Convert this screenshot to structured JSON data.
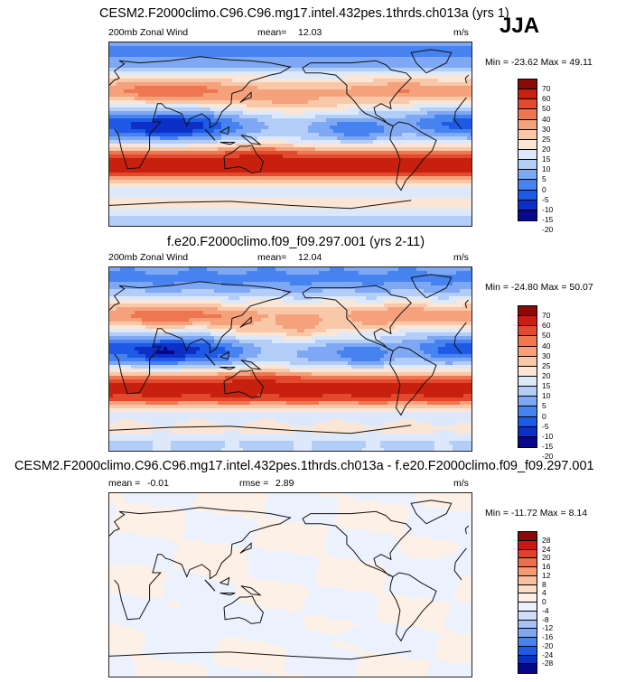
{
  "season": "JJA",
  "colors": {
    "wind": [
      "#08088c",
      "#0c2fc8",
      "#1e5ae6",
      "#4682f0",
      "#7ea8f4",
      "#b2cdf7",
      "#dde9fb",
      "#fbe6d6",
      "#f9c8a8",
      "#f5a27c",
      "#ee7650",
      "#e34a2d",
      "#c8200f",
      "#8c0a05"
    ],
    "diff": [
      "#08088c",
      "#0c2fc8",
      "#1e5ae6",
      "#4682f0",
      "#7ea8f4",
      "#a6c2f6",
      "#cfdff9",
      "#ecf2fd",
      "#fdf0e6",
      "#fbdcc4",
      "#f8c0a0",
      "#f49a76",
      "#ec6e4a",
      "#e0432a",
      "#c41c0e",
      "#8c0a05"
    ]
  },
  "chart_data": [
    {
      "type": "heatmap",
      "title": "CESM2.F2000climo.C96.C96.mg17.intel.432pes.1thrds.ch013a (yrs 1)",
      "variable": "200mb Zonal Wind",
      "mean_label": "mean=",
      "mean": "12.03",
      "units": "m/s",
      "minmax": "Min = -23.62 Max =  49.11",
      "colorbar_ticks": [
        "70",
        "60",
        "50",
        "40",
        "30",
        "25",
        "20",
        "15",
        "10",
        "5",
        "0",
        "-5",
        "-10",
        "-15",
        "-20"
      ],
      "lon_range": [
        0,
        360
      ],
      "lat_range": [
        -90,
        90
      ]
    },
    {
      "type": "heatmap",
      "title": "f.e20.F2000climo.f09_f09.297.001 (yrs 2-11)",
      "variable": "200mb Zonal Wind",
      "mean_label": "mean=",
      "mean": "12.04",
      "units": "m/s",
      "minmax": "Min = -24.80 Max =  50.07",
      "colorbar_ticks": [
        "70",
        "60",
        "50",
        "40",
        "30",
        "25",
        "20",
        "15",
        "10",
        "5",
        "0",
        "-5",
        "-10",
        "-15",
        "-20"
      ],
      "lon_range": [
        0,
        360
      ],
      "lat_range": [
        -90,
        90
      ]
    },
    {
      "type": "heatmap",
      "title": "CESM2.F2000climo.C96.C96.mg17.intel.432pes.1thrds.ch013a - f.e20.F2000climo.f09_f09.297.001",
      "mean_label": "mean =",
      "mean": "-0.01",
      "rmse_label": "rmse =",
      "rmse": "2.89",
      "units": "m/s",
      "minmax": "Min = -11.72 Max =   8.14",
      "colorbar_ticks": [
        "28",
        "24",
        "20",
        "16",
        "12",
        "8",
        "4",
        "0",
        "-4",
        "-8",
        "-12",
        "-16",
        "-20",
        "-24",
        "-28"
      ],
      "lon_range": [
        0,
        360
      ],
      "lat_range": [
        -90,
        90
      ]
    }
  ]
}
